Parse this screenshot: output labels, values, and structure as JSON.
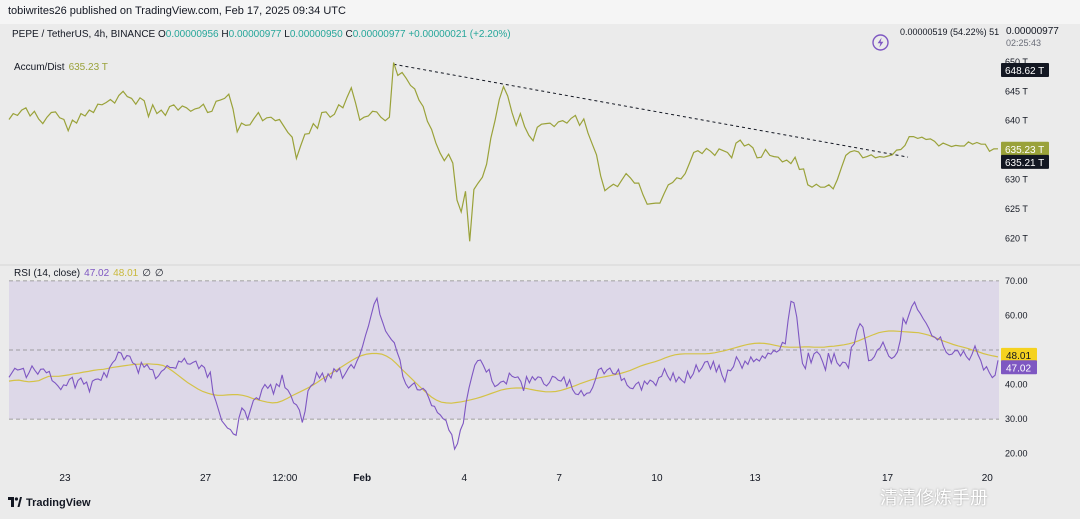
{
  "header": {
    "publisher_line": "tobiwrites26 published on TradingView.com, Feb 17, 2025 09:34 UTC"
  },
  "symbol_row": {
    "symbol": "PEPE / TetherUS, 4h, BINANCE",
    "o_label": "O",
    "o_value": "0.00000956",
    "h_label": "H",
    "h_value": "0.00000977",
    "l_label": "L",
    "l_value": "0.00000950",
    "c_label": "C",
    "c_value": "0.00000977",
    "change": "+0.00000021 (+2.20%)"
  },
  "right_info": {
    "stats": "0.00000519 (54.22%) 51",
    "price": "0.00000977",
    "countdown": "02:25:43"
  },
  "footer": {
    "logo_text": "TradingView",
    "watermark": "清清修炼手册"
  },
  "colors": {
    "ad_line": "#9aa23a",
    "rsi_line": "#7e57c2",
    "rsi_ma": "#d4c247",
    "trendline": "#131722",
    "rsi_band": "#ddd8e8",
    "up": "#26a69a"
  },
  "chart_data": [
    {
      "type": "line",
      "name": "accum-dist",
      "title": "Accum/Dist",
      "legend_value": "635.23 T",
      "yticks": [
        "650 T",
        "645 T",
        "640 T",
        "635 T",
        "630 T",
        "625 T",
        "620 T"
      ],
      "ytick_values": [
        650,
        645,
        640,
        635,
        630,
        625,
        620
      ],
      "ylim": [
        617,
        651
      ],
      "labels_right": [
        {
          "text": "648.62 T",
          "value": 648.62,
          "style": "dark"
        },
        {
          "text": "635.23 T",
          "value": 635.23,
          "style": "olive"
        },
        {
          "text": "635.21 T",
          "value": 635.21,
          "style": "dark"
        }
      ],
      "series": [
        {
          "values": [
            640.2,
            641.2,
            640.9,
            641.8,
            642.2,
            640.8,
            641.6,
            640.3,
            639.5,
            640.6,
            641.4,
            641.5,
            640.5,
            640.2,
            638.3,
            640.1,
            639.6,
            641.2,
            640.8,
            641.8,
            641.4,
            642.8,
            642.7,
            643.1,
            643.6,
            643.0,
            644.3,
            645.0,
            644.1,
            643.8,
            642.8,
            643.9,
            643.4,
            640.7,
            642.7,
            641.2,
            641.8,
            640.9,
            642.4,
            642.7,
            641.8,
            642.5,
            642.2,
            641.6,
            642.0,
            642.2,
            642.8,
            641.4,
            641.6,
            643.3,
            643.5,
            643.8,
            644.5,
            642.0,
            638.1,
            639.6,
            639.2,
            639.3,
            640.4,
            641.4,
            640.0,
            640.5,
            640.6,
            640.0,
            640.2,
            639.1,
            638.0,
            637.2,
            633.6,
            635.7,
            637.7,
            637.8,
            639.5,
            638.7,
            641.4,
            641.5,
            640.6,
            641.1,
            642.7,
            642.2,
            644.0,
            645.6,
            643.0,
            640.1,
            640.6,
            640.8,
            641.6,
            641.5,
            640.6,
            640.0,
            640.6,
            649.9,
            647.7,
            648.2,
            647.2,
            646.0,
            645.4,
            643.5,
            642.4,
            639.9,
            638.5,
            636.2,
            634.5,
            633.2,
            634.3,
            632.8,
            626.5,
            624.5,
            628.0,
            619.5,
            628.3,
            629.4,
            630.4,
            632.6,
            637.0,
            640.0,
            643.6,
            645.8,
            644.2,
            641.4,
            639.2,
            641.2,
            639.0,
            637.5,
            636.6,
            638.9,
            639.4,
            639.5,
            639.6,
            639.0,
            639.8,
            640.0,
            639.6,
            640.4,
            640.9,
            639.2,
            640.3,
            637.9,
            636.0,
            634.2,
            630.6,
            628.1,
            628.7,
            629.2,
            628.8,
            629.9,
            631.0,
            630.3,
            629.4,
            629.4,
            627.4,
            625.8,
            625.9,
            626.0,
            626.0,
            627.6,
            629.1,
            629.5,
            630.3,
            630.1,
            631.0,
            632.8,
            634.6,
            634.9,
            634.4,
            635.3,
            634.8,
            634.1,
            635.2,
            634.9,
            634.6,
            633.7,
            636.2,
            636.7,
            635.7,
            636.0,
            635.4,
            633.7,
            633.8,
            635.1,
            634.1,
            633.9,
            633.8,
            633.0,
            633.3,
            632.7,
            633.8,
            631.7,
            631.8,
            629.1,
            628.7,
            629.2,
            628.7,
            628.7,
            629.1,
            628.4,
            630.0,
            632.1,
            634.1,
            634.7,
            634.9,
            634.7,
            633.7,
            633.9,
            634.2,
            633.7,
            633.9,
            633.8,
            634.0,
            634.2,
            635.0,
            635.1,
            635.8,
            637.3,
            637.3,
            637.0,
            637.2,
            636.8,
            636.9,
            636.5,
            635.7,
            636.2,
            635.9,
            635.6,
            635.8,
            635.7,
            635.7,
            636.4,
            636.0,
            636.3,
            636.0,
            636.0,
            634.8,
            635.2,
            635.23
          ]
        }
      ],
      "trendline": {
        "style": "dashed",
        "from_index": 91,
        "to_index": 239,
        "from_value": 649.6,
        "to_value": 635.0
      }
    },
    {
      "type": "line",
      "name": "rsi",
      "title": "RSI (14, close)",
      "legend_values": [
        "47.02",
        "48.01",
        "∅",
        "∅"
      ],
      "yticks": [
        "70.00",
        "60.00",
        "48.01",
        "47.02",
        "40.00",
        "30.00",
        "20.00"
      ],
      "ytick_values": [
        70,
        60,
        40,
        30,
        20
      ],
      "ylim": [
        17,
        72
      ],
      "bands": {
        "upper": 70,
        "middle": 50,
        "lower": 30
      },
      "labels_right": [
        {
          "text": "48.01",
          "value": 48.01,
          "style": "yellow"
        },
        {
          "text": "47.02",
          "value": 47.02,
          "style": "purple"
        }
      ],
      "series": [
        {
          "name": "RSI",
          "values": [
            42.1,
            43.4,
            44.7,
            44.2,
            44.4,
            44.7,
            42.0,
            43.5,
            45.4,
            44.1,
            43.0,
            44.4,
            44.5,
            43.4,
            43.8,
            41.1,
            40.5,
            39.6,
            38.5,
            39.9,
            39.7,
            41.5,
            42.1,
            39.0,
            41.2,
            41.9,
            40.1,
            40.7,
            37.9,
            41.0,
            41.5,
            41.6,
            41.2,
            43.5,
            42.1,
            44.9,
            46.3,
            47.2,
            49.4,
            49.1,
            47.2,
            48.4,
            48.2,
            46.3,
            45.8,
            43.3,
            46.4,
            45.0,
            45.8,
            44.4,
            44.3,
            41.7,
            42.5,
            43.8,
            44.4,
            45.5,
            44.9,
            44.9,
            44.7,
            46.8,
            46.5,
            47.6,
            46.0,
            45.9,
            46.4,
            46.8,
            44.6,
            45.6,
            44.9,
            42.1,
            43.6,
            37.5,
            35.1,
            32.3,
            29.5,
            28.5,
            27.4,
            27.0,
            25.7,
            25.3,
            30.4,
            33.2,
            32.3,
            29.9,
            32.7,
            35.4,
            36.2,
            35.6,
            38.6,
            40.0,
            38.9,
            40.0,
            37.3,
            40.2,
            39.4,
            42.8,
            39.1,
            38.4,
            36.9,
            34.7,
            34.1,
            32.6,
            29.0,
            32.3,
            38.2,
            39.6,
            40.3,
            43.5,
            41.9,
            43.3,
            40.9,
            43.1,
            41.9,
            44.6,
            43.7,
            44.7,
            41.8,
            43.2,
            44.7,
            45.8,
            44.7,
            46.8,
            48.6,
            51.1,
            54.2,
            56.9,
            60.2,
            63.3,
            65.0,
            60.3,
            57.9,
            55.5,
            54.2,
            53.0,
            52.1,
            49.4,
            47.1,
            42.3,
            40.2,
            39.0,
            39.8,
            40.5,
            38.5,
            38.4,
            38.9,
            38.1,
            36.1,
            33.9,
            33.7,
            31.9,
            31.2,
            30.1,
            29.6,
            26.8,
            25.5,
            21.3,
            22.9,
            26.8,
            28.8,
            34.8,
            39.0,
            42.4,
            45.6,
            46.9,
            47.1,
            45.5,
            43.6,
            44.4,
            41.0,
            39.4,
            39.9,
            40.7,
            41.0,
            40.2,
            43.3,
            42.4,
            42.0,
            42.2,
            40.9,
            38.2,
            42.3,
            40.5,
            42.3,
            41.3,
            42.2,
            42.0,
            40.2,
            39.6,
            40.6,
            42.4,
            42.1,
            41.3,
            41.0,
            42.2,
            39.5,
            41.4,
            38.6,
            37.3,
            37.1,
            38.3,
            36.7,
            37.5,
            37.6,
            39.1,
            41.5,
            44.3,
            44.8,
            43.1,
            44.2,
            44.8,
            43.2,
            43.0,
            44.4,
            41.2,
            41.8,
            39.8,
            39.0,
            38.8,
            40.1,
            40.7,
            38.4,
            41.0,
            40.1,
            41.3,
            40.8,
            39.7,
            42.0,
            42.4,
            44.6,
            42.6,
            41.2,
            43.4,
            40.8,
            42.2,
            41.2,
            40.5,
            43.8,
            41.8,
            43.1,
            45.7,
            43.7,
            44.8,
            46.5,
            46.7,
            44.5,
            46.7,
            43.7,
            45.6,
            42.7,
            40.8,
            44.2,
            44.0,
            45.2,
            48.0,
            46.6,
            44.7,
            46.8,
            45.8,
            48.0,
            46.6,
            47.4,
            46.8,
            48.3,
            47.6,
            49.1,
            48.8,
            49.9,
            49.4,
            50.0,
            52.2,
            51.8,
            58.6,
            64.1,
            63.7,
            59.5,
            51.9,
            46.1,
            44.6,
            49.2,
            46.3,
            48.9,
            49.5,
            48.6,
            46.6,
            44.2,
            49.1,
            46.2,
            49.0,
            46.3,
            45.3,
            46.5,
            46.3,
            44.8,
            50.8,
            51.8,
            55.7,
            57.6,
            56.6,
            52.0,
            46.9,
            47.1,
            48.1,
            50.0,
            50.6,
            52.3,
            50.2,
            48.2,
            47.5,
            48.1,
            49.4,
            52.8,
            59.2,
            57.6,
            60.2,
            62.6,
            63.9,
            61.7,
            60.5,
            59.0,
            57.8,
            56.2,
            54.1,
            53.7,
            52.9,
            53.8,
            51.1,
            49.3,
            48.6,
            48.8,
            49.8,
            49.8,
            48.3,
            49.7,
            48.1,
            47.1,
            48.8,
            51.2,
            48.7,
            46.9,
            44.2,
            45.2,
            43.4,
            42.0,
            42.7,
            47.02
          ]
        },
        {
          "name": "RSI-based MA",
          "values": [
            41.0,
            41.2,
            41.3,
            41.0,
            40.8,
            40.9,
            41.1,
            41.8,
            42.4,
            42.4,
            42.4,
            42.6,
            42.8,
            43.1,
            43.3,
            43.6,
            43.8,
            44.1,
            44.3,
            44.4,
            44.7,
            45.0,
            45.2,
            45.4,
            45.6,
            45.8,
            45.9,
            45.9,
            46.0,
            45.9,
            45.8,
            45.5,
            44.8,
            43.8,
            42.7,
            41.6,
            40.5,
            39.6,
            38.7,
            38.0,
            37.5,
            37.1,
            36.9,
            36.9,
            37.0,
            37.1,
            37.1,
            36.9,
            36.5,
            36.0,
            35.6,
            35.2,
            34.9,
            34.7,
            34.8,
            35.3,
            36.0,
            36.8,
            37.5,
            38.2,
            38.9,
            39.7,
            40.6,
            41.6,
            42.5,
            43.4,
            44.3,
            45.2,
            46.1,
            47.0,
            47.8,
            48.4,
            48.8,
            49.0,
            49.0,
            48.8,
            48.2,
            47.3,
            46.0,
            44.5,
            43.1,
            41.7,
            40.3,
            38.9,
            37.6,
            36.4,
            35.5,
            34.9,
            34.7,
            34.6,
            34.8,
            35.0,
            35.3,
            35.6,
            36.0,
            36.4,
            36.9,
            37.4,
            37.9,
            38.4,
            38.7,
            38.9,
            39.0,
            39.0,
            38.9,
            38.6,
            38.3,
            38.1,
            37.9,
            37.9,
            38.0,
            38.3,
            38.7,
            39.2,
            39.7,
            40.3,
            40.8,
            41.3,
            41.7,
            42.0,
            42.3,
            42.6,
            42.9,
            43.2,
            43.6,
            44.1,
            44.7,
            45.3,
            45.8,
            46.2,
            46.6,
            47.1,
            47.7,
            48.2,
            48.6,
            48.8,
            48.9,
            48.9,
            48.9,
            48.9,
            48.9,
            49.0,
            49.2,
            49.5,
            49.8,
            50.2,
            50.6,
            51.0,
            51.4,
            51.7,
            51.9,
            52.0,
            51.9,
            51.7,
            51.4,
            51.1,
            50.9,
            50.8,
            50.8,
            50.8,
            50.9,
            50.9,
            50.8,
            50.8,
            50.8,
            51.0,
            51.1,
            51.3,
            51.5,
            51.8,
            52.2,
            52.7,
            53.3,
            53.9,
            54.5,
            55.0,
            55.3,
            55.5,
            55.5,
            55.4,
            55.3,
            55.2,
            55.1,
            55.0,
            54.7,
            54.3,
            53.8,
            53.2,
            52.6,
            52.1,
            51.6,
            51.2,
            50.8,
            50.4,
            49.9,
            49.5,
            49.0,
            48.6,
            48.3,
            48.01
          ]
        }
      ]
    }
  ],
  "x_axis": {
    "labels": [
      {
        "text": "23",
        "frac": 0.0566
      },
      {
        "text": "27",
        "frac": 0.1987
      },
      {
        "text": "12:00",
        "frac": 0.2789
      },
      {
        "text": "Feb",
        "frac": 0.3571
      },
      {
        "text": "4",
        "frac": 0.4603
      },
      {
        "text": "7",
        "frac": 0.5563
      },
      {
        "text": "10",
        "frac": 0.6552
      },
      {
        "text": "13",
        "frac": 0.7543
      },
      {
        "text": "17",
        "frac": 0.8883
      },
      {
        "text": "20",
        "frac": 0.9892
      }
    ],
    "bold": [
      "Feb"
    ]
  }
}
